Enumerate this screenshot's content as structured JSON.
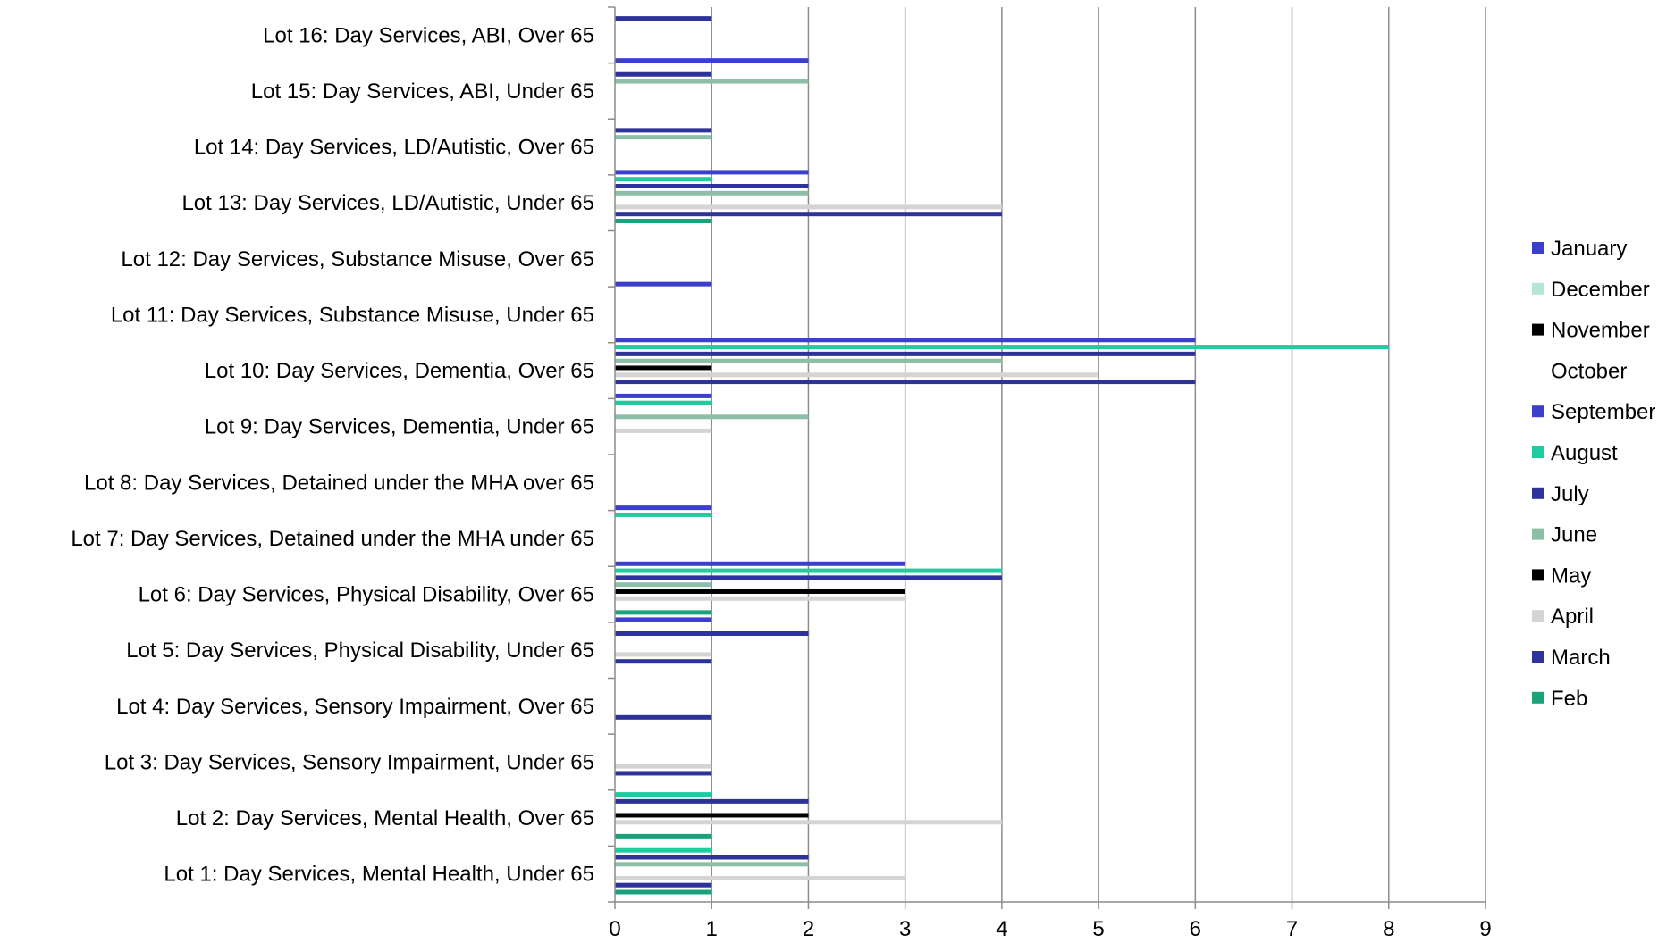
{
  "chart_data": {
    "type": "bar",
    "orientation": "horizontal",
    "categories": [
      "Lot 1: Day Services, Mental Health, Under 65",
      "Lot 2: Day Services, Mental Health, Over 65",
      "Lot 3: Day Services, Sensory Impairment, Under 65",
      "Lot 4: Day Services, Sensory Impairment, Over 65",
      "Lot 5: Day Services, Physical Disability, Under 65",
      "Lot 6: Day Services, Physical Disability, Over 65",
      "Lot 7: Day Services, Detained under the MHA under 65",
      "Lot 8: Day Services, Detained under the MHA over 65",
      "Lot 9: Day Services, Dementia, Under 65",
      "Lot 10: Day Services, Dementia, Over 65",
      "Lot 11: Day Services, Substance Misuse, Under 65",
      "Lot 12: Day Services, Substance Misuse, Over 65",
      "Lot 13: Day Services, LD/Autistic, Under 65",
      "Lot 14: Day Services, LD/Autistic, Over 65",
      "Lot 15: Day Services, ABI, Under 65",
      "Lot 16: Day Services, ABI, Over 65"
    ],
    "series": [
      {
        "name": "Feb",
        "color": "#1aa37a",
        "values": [
          1,
          1,
          0,
          0,
          0,
          1,
          0,
          0,
          0,
          0,
          0,
          0,
          1,
          0,
          0,
          0
        ]
      },
      {
        "name": "March",
        "color": "#2e3399",
        "values": [
          1,
          0,
          1,
          1,
          1,
          0,
          0,
          0,
          0,
          6,
          0,
          0,
          4,
          0,
          0,
          0
        ]
      },
      {
        "name": "April",
        "color": "#d4d4d4",
        "values": [
          3,
          4,
          1,
          0,
          1,
          3,
          0,
          0,
          1,
          5,
          0,
          0,
          4,
          0,
          0,
          0
        ]
      },
      {
        "name": "May",
        "color": "#000000",
        "values": [
          0,
          2,
          0,
          0,
          0,
          3,
          0,
          0,
          0,
          1,
          0,
          0,
          0,
          0,
          0,
          0
        ]
      },
      {
        "name": "June",
        "color": "#8dbfa6",
        "values": [
          2,
          0,
          0,
          0,
          0,
          1,
          0,
          0,
          2,
          4,
          0,
          0,
          2,
          1,
          2,
          0
        ]
      },
      {
        "name": "July",
        "color": "#2e3399",
        "values": [
          2,
          2,
          0,
          0,
          2,
          4,
          0,
          0,
          0,
          6,
          0,
          0,
          2,
          1,
          1,
          1
        ]
      },
      {
        "name": "August",
        "color": "#1fcca0",
        "values": [
          1,
          1,
          0,
          0,
          0,
          4,
          1,
          0,
          1,
          8,
          0,
          0,
          1,
          0,
          0,
          0
        ]
      },
      {
        "name": "September",
        "color": "#3b3fcc",
        "values": [
          0,
          0,
          0,
          0,
          1,
          3,
          1,
          0,
          1,
          6,
          1,
          0,
          2,
          0,
          2,
          0
        ]
      }
    ],
    "xlim": [
      0,
      9
    ],
    "xticks": [
      "0",
      "1",
      "2",
      "3",
      "4",
      "5",
      "6",
      "7",
      "8",
      "9"
    ],
    "grid": "vertical",
    "legend": {
      "position": "right",
      "entries": [
        {
          "name": "January",
          "color": "#3b3fcc"
        },
        {
          "name": "December",
          "color": "#b3e6d4"
        },
        {
          "name": "November",
          "color": "#000000"
        },
        {
          "name": "October",
          "color": "#ffffff"
        },
        {
          "name": "September",
          "color": "#3b3fcc"
        },
        {
          "name": "August",
          "color": "#1fcca0"
        },
        {
          "name": "July",
          "color": "#2e3399"
        },
        {
          "name": "June",
          "color": "#8dbfa6"
        },
        {
          "name": "May",
          "color": "#000000"
        },
        {
          "name": "April",
          "color": "#d4d4d4"
        },
        {
          "name": "March",
          "color": "#2e3399"
        },
        {
          "name": "Feb",
          "color": "#1aa37a"
        }
      ]
    }
  }
}
